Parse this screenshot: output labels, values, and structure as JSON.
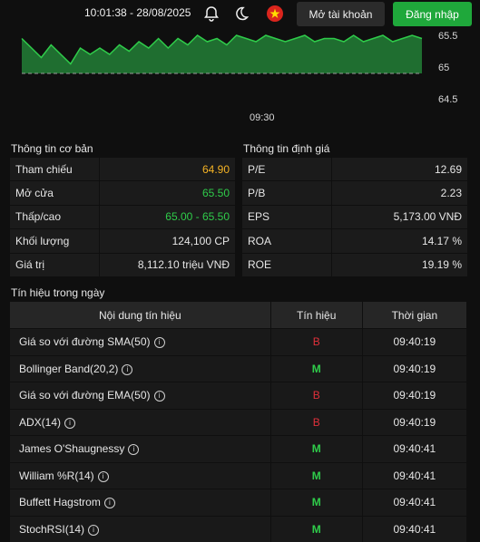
{
  "header": {
    "clock": "10:01:38 - 28/08/2025",
    "open_account": "Mở tài khoản",
    "login": "Đăng nhập"
  },
  "chart": {
    "y_labels": [
      "65.5",
      "65",
      "64.5"
    ],
    "time_label": "09:30"
  },
  "chart_data": {
    "type": "area",
    "x_label": "09:30",
    "ylim": [
      64.5,
      65.5
    ],
    "reference": 64.9,
    "values": [
      65.45,
      65.3,
      65.15,
      65.35,
      65.2,
      65.05,
      65.3,
      65.2,
      65.3,
      65.2,
      65.35,
      65.25,
      65.4,
      65.3,
      65.45,
      65.3,
      65.45,
      65.35,
      65.5,
      65.4,
      65.45,
      65.35,
      65.5,
      65.45,
      65.4,
      65.5,
      65.45,
      65.4,
      65.45,
      65.5,
      65.4,
      65.45,
      65.45,
      65.4,
      65.5,
      65.4,
      65.45,
      65.5,
      65.4,
      65.45,
      65.5,
      65.45
    ],
    "colors": {
      "line": "#2fcc4a",
      "fill": "#1f6e30",
      "reference": "#9a9a9a"
    }
  },
  "basic": {
    "title": "Thông tin cơ bản",
    "rows": [
      {
        "k": "Tham chiếu",
        "v": "64.90",
        "color": "#f5b324"
      },
      {
        "k": "Mở cửa",
        "v": "65.50",
        "color": "#2fcc4a"
      },
      {
        "k": "Thấp/cao",
        "v": "65.00 - 65.50",
        "color": "#2fcc4a"
      },
      {
        "k": "Khối lượng",
        "v": "124,100 CP",
        "color": "#e6e6e6"
      },
      {
        "k": "Giá trị",
        "v": "8,112.10 triệu VNĐ",
        "color": "#e6e6e6"
      }
    ]
  },
  "valuation": {
    "title": "Thông tin định giá",
    "rows": [
      {
        "k": "P/E",
        "v": "12.69"
      },
      {
        "k": "P/B",
        "v": "2.23"
      },
      {
        "k": "EPS",
        "v": "5,173.00 VNĐ"
      },
      {
        "k": "ROA",
        "v": "14.17 %"
      },
      {
        "k": "ROE",
        "v": "19.19 %"
      }
    ]
  },
  "signals": {
    "title": "Tín hiệu trong ngày",
    "headers": [
      "Nội dung tín hiệu",
      "Tín hiệu",
      "Thời gian"
    ],
    "rows": [
      {
        "name": "Giá so với đường SMA(50)",
        "signal": "B",
        "time": "09:40:19"
      },
      {
        "name": "Bollinger Band(20,2)",
        "signal": "M",
        "time": "09:40:19"
      },
      {
        "name": "Giá so với đường EMA(50)",
        "signal": "B",
        "time": "09:40:19"
      },
      {
        "name": "ADX(14)",
        "signal": "B",
        "time": "09:40:19"
      },
      {
        "name": "James O'Shaugnessy",
        "signal": "M",
        "time": "09:40:41"
      },
      {
        "name": "William %R(14)",
        "signal": "M",
        "time": "09:40:41"
      },
      {
        "name": "Buffett Hagstrom",
        "signal": "M",
        "time": "09:40:41"
      },
      {
        "name": "StochRSI(14)",
        "signal": "M",
        "time": "09:40:41"
      }
    ],
    "colors": {
      "B": "#e0303a",
      "M": "#2fcc4a"
    }
  }
}
